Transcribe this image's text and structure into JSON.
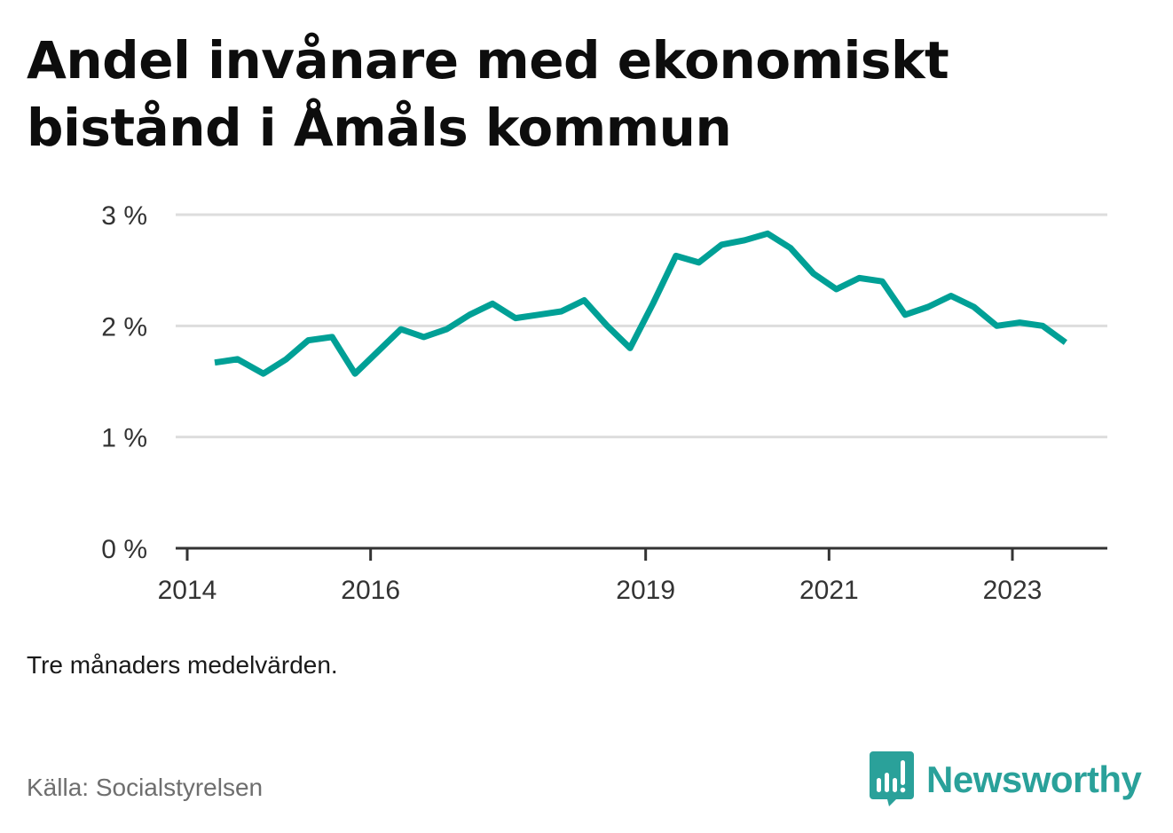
{
  "title": "Andel invånare med ekonomiskt bistånd i Åmåls kommun",
  "note": "Tre månaders medelvärden.",
  "source": "Källa: Socialstyrelsen",
  "logo": {
    "text": "Newsworthy",
    "icon": "newsworthy-chart-icon",
    "color": "#2aa19a"
  },
  "colors": {
    "line": "#00a096",
    "grid": "#dddddd",
    "axis": "#333333"
  },
  "chart_data": {
    "type": "line",
    "title": "Andel invånare med ekonomiskt bistånd i Åmåls kommun",
    "xlabel": "",
    "ylabel": "",
    "ylim": [
      0,
      3
    ],
    "xlim": [
      2014.0,
      2024.0
    ],
    "y_ticks": [
      {
        "value": 0,
        "label": "0 %"
      },
      {
        "value": 1,
        "label": "1 %"
      },
      {
        "value": 2,
        "label": "2 %"
      },
      {
        "value": 3,
        "label": "3 %"
      }
    ],
    "x_ticks": [
      {
        "value": 2014,
        "label": "2014"
      },
      {
        "value": 2016,
        "label": "2016"
      },
      {
        "value": 2019,
        "label": "2019"
      },
      {
        "value": 2021,
        "label": "2021"
      },
      {
        "value": 2023,
        "label": "2023"
      }
    ],
    "grid": true,
    "series": [
      {
        "points": [
          {
            "x": 2014.3,
            "y": 1.67
          },
          {
            "x": 2014.55,
            "y": 1.7
          },
          {
            "x": 2014.83,
            "y": 1.57
          },
          {
            "x": 2015.08,
            "y": 1.7
          },
          {
            "x": 2015.32,
            "y": 1.87
          },
          {
            "x": 2015.58,
            "y": 1.9
          },
          {
            "x": 2015.83,
            "y": 1.57
          },
          {
            "x": 2016.08,
            "y": 1.77
          },
          {
            "x": 2016.33,
            "y": 1.97
          },
          {
            "x": 2016.58,
            "y": 1.9
          },
          {
            "x": 2016.83,
            "y": 1.97
          },
          {
            "x": 2017.08,
            "y": 2.1
          },
          {
            "x": 2017.33,
            "y": 2.2
          },
          {
            "x": 2017.58,
            "y": 2.07
          },
          {
            "x": 2017.83,
            "y": 2.1
          },
          {
            "x": 2018.08,
            "y": 2.13
          },
          {
            "x": 2018.33,
            "y": 2.23
          },
          {
            "x": 2018.58,
            "y": 2.0
          },
          {
            "x": 2018.83,
            "y": 1.8
          },
          {
            "x": 2019.08,
            "y": 2.2
          },
          {
            "x": 2019.33,
            "y": 2.63
          },
          {
            "x": 2019.58,
            "y": 2.57
          },
          {
            "x": 2019.83,
            "y": 2.73
          },
          {
            "x": 2020.08,
            "y": 2.77
          },
          {
            "x": 2020.33,
            "y": 2.83
          },
          {
            "x": 2020.58,
            "y": 2.7
          },
          {
            "x": 2020.83,
            "y": 2.47
          },
          {
            "x": 2021.08,
            "y": 2.33
          },
          {
            "x": 2021.33,
            "y": 2.43
          },
          {
            "x": 2021.58,
            "y": 2.4
          },
          {
            "x": 2021.83,
            "y": 2.1
          },
          {
            "x": 2022.08,
            "y": 2.17
          },
          {
            "x": 2022.33,
            "y": 2.27
          },
          {
            "x": 2022.58,
            "y": 2.17
          },
          {
            "x": 2022.83,
            "y": 2.0
          },
          {
            "x": 2023.08,
            "y": 2.03
          },
          {
            "x": 2023.33,
            "y": 2.0
          },
          {
            "x": 2023.58,
            "y": 1.85
          }
        ]
      }
    ]
  }
}
